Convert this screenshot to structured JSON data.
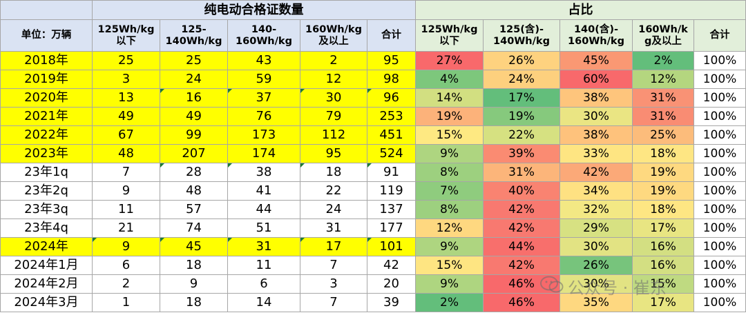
{
  "header": {
    "group_count": "纯电动合格证数量",
    "group_share": "占比",
    "unit": "单位：万辆",
    "count_cols": [
      "125Wh/kg\n以下",
      "125-\n140Wh/kg",
      "140-\n160Wh/kg",
      "160Wh/kg\n及以上",
      "合计"
    ],
    "share_cols": [
      "125Wh/kg\n以下",
      "125(含)-\n140Wh/kg",
      "140(含)-\n160Wh/kg",
      "160Wh/k\ng及以上",
      "合计"
    ]
  },
  "rows": [
    {
      "label": "2018年",
      "yellow": true,
      "counts": [
        "25",
        "25",
        "43",
        "2",
        "95"
      ],
      "shares": [
        "27%",
        "26%",
        "45%",
        "2%",
        "100%"
      ],
      "colors": [
        "#f8696b",
        "#fed27f",
        "#fa9873",
        "#63be7b"
      ]
    },
    {
      "label": "2019年",
      "yellow": true,
      "counts": [
        "3",
        "24",
        "59",
        "12",
        "98"
      ],
      "shares": [
        "4%",
        "24%",
        "60%",
        "12%",
        "100%"
      ],
      "colors": [
        "#7dc77c",
        "#fdd07e",
        "#f8696b",
        "#b4d67f"
      ]
    },
    {
      "label": "2020年",
      "yellow": true,
      "counts": [
        "13",
        "16",
        "37",
        "30",
        "96"
      ],
      "shares": [
        "14%",
        "17%",
        "38%",
        "31%",
        "100%"
      ],
      "colors": [
        "#d2df81",
        "#63be7b",
        "#fec57c",
        "#f99275"
      ]
    },
    {
      "label": "2021年",
      "yellow": true,
      "counts": [
        "49",
        "49",
        "76",
        "79",
        "253"
      ],
      "shares": [
        "19%",
        "19%",
        "30%",
        "31%",
        "100%"
      ],
      "colors": [
        "#fcb27a",
        "#86c97d",
        "#eae583",
        "#f98c73"
      ]
    },
    {
      "label": "2022年",
      "yellow": true,
      "counts": [
        "67",
        "99",
        "173",
        "112",
        "451"
      ],
      "shares": [
        "15%",
        "22%",
        "38%",
        "25%",
        "100%"
      ],
      "colors": [
        "#fee982",
        "#d6e181",
        "#fec27c",
        "#fcbc7b"
      ]
    },
    {
      "label": "2023年",
      "yellow": true,
      "counts": [
        "48",
        "207",
        "174",
        "95",
        "524"
      ],
      "shares": [
        "9%",
        "39%",
        "33%",
        "18%",
        "100%"
      ],
      "colors": [
        "#aed580",
        "#fa8b72",
        "#fee582",
        "#fee683"
      ]
    },
    {
      "label": "23年1q",
      "yellow": false,
      "counts": [
        "7",
        "28",
        "38",
        "18",
        "91"
      ],
      "shares": [
        "8%",
        "31%",
        "42%",
        "19%",
        "100%"
      ],
      "colors": [
        "#9dd07f",
        "#fcb57a",
        "#fba978",
        "#fed980"
      ]
    },
    {
      "label": "23年2q",
      "yellow": false,
      "counts": [
        "9",
        "48",
        "41",
        "22",
        "119"
      ],
      "shares": [
        "7%",
        "40%",
        "34%",
        "19%",
        "100%"
      ],
      "colors": [
        "#8fcc7e",
        "#f98371",
        "#fee182",
        "#fed980"
      ]
    },
    {
      "label": "23年3q",
      "yellow": false,
      "counts": [
        "11",
        "57",
        "44",
        "24",
        "137"
      ],
      "shares": [
        "8%",
        "42%",
        "32%",
        "18%",
        "100%"
      ],
      "colors": [
        "#9dd07f",
        "#f87970",
        "#f3e884",
        "#fee683"
      ]
    },
    {
      "label": "23年4q",
      "yellow": false,
      "counts": [
        "21",
        "74",
        "51",
        "31",
        "177"
      ],
      "shares": [
        "12%",
        "42%",
        "29%",
        "17%",
        "100%"
      ],
      "colors": [
        "#fed880",
        "#f87970",
        "#d7e182",
        "#e8e582"
      ]
    },
    {
      "label": "2024年",
      "yellow": true,
      "counts": [
        "9",
        "45",
        "31",
        "17",
        "101"
      ],
      "shares": [
        "9%",
        "44%",
        "30%",
        "16%",
        "100%"
      ],
      "colors": [
        "#aed580",
        "#f86f6c",
        "#e2e383",
        "#d3df82"
      ]
    },
    {
      "label": "2024年1月",
      "yellow": false,
      "counts": [
        "6",
        "18",
        "11",
        "7",
        "42"
      ],
      "shares": [
        "15%",
        "42%",
        "26%",
        "16%",
        "100%"
      ],
      "colors": [
        "#fee582",
        "#f87970",
        "#77c47c",
        "#d3df82"
      ]
    },
    {
      "label": "2024年2月",
      "yellow": false,
      "counts": [
        "2",
        "9",
        "6",
        "3",
        "20"
      ],
      "shares": [
        "9%",
        "46%",
        "30%",
        "15%",
        "100%"
      ],
      "colors": [
        "#aed580",
        "#f8696b",
        "#e2e383",
        "#bfda81"
      ]
    },
    {
      "label": "2024年3月",
      "yellow": false,
      "counts": [
        "1",
        "18",
        "14",
        "7",
        "39"
      ],
      "shares": [
        "2%",
        "46%",
        "35%",
        "17%",
        "100%"
      ],
      "colors": [
        "#63be7b",
        "#f8696b",
        "#fed880",
        "#e8e582"
      ]
    }
  ],
  "watermark": "公众号 · 崔东"
}
